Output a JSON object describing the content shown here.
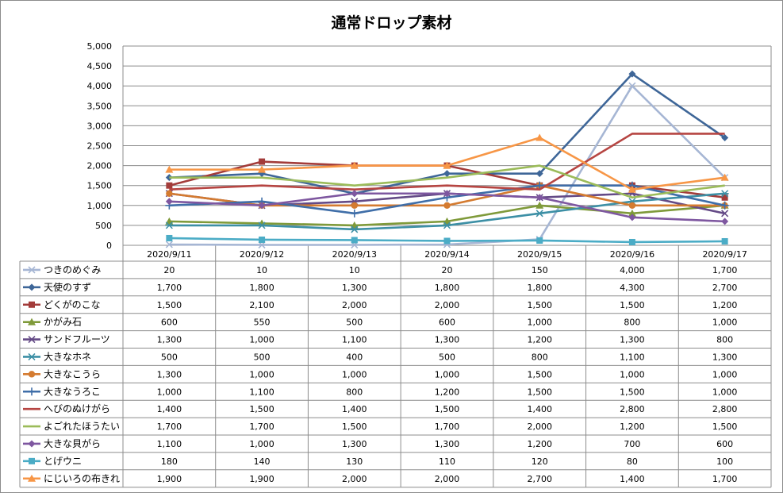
{
  "chart_data": {
    "type": "line",
    "title": "通常ドロップ素材",
    "xlabel": "",
    "ylabel": "",
    "ylim": [
      0,
      5000
    ],
    "y_ticks": [
      "0",
      "500",
      "1,000",
      "1,500",
      "2,000",
      "2,500",
      "3,000",
      "3,500",
      "4,000",
      "4,500",
      "5,000"
    ],
    "grid": true,
    "legend": "data-table",
    "categories": [
      "2020/9/11",
      "2020/9/12",
      "2020/9/13",
      "2020/9/14",
      "2020/9/15",
      "2020/9/16",
      "2020/9/17"
    ],
    "series": [
      {
        "name": "つきのめぐみ",
        "color": "#a6b6d4",
        "marker": "x",
        "values": [
          20,
          10,
          10,
          20,
          150,
          4000,
          1700
        ],
        "labels": [
          "20",
          "10",
          "10",
          "20",
          "150",
          "4,000",
          "1,700"
        ]
      },
      {
        "name": "天使のすず",
        "color": "#3e6698",
        "marker": "diamond",
        "values": [
          1700,
          1800,
          1300,
          1800,
          1800,
          4300,
          2700
        ],
        "labels": [
          "1,700",
          "1,800",
          "1,300",
          "1,800",
          "1,800",
          "4,300",
          "2,700"
        ]
      },
      {
        "name": "どくがのこな",
        "color": "#a33c3a",
        "marker": "square",
        "values": [
          1500,
          2100,
          2000,
          2000,
          1500,
          1500,
          1200
        ],
        "labels": [
          "1,500",
          "2,100",
          "2,000",
          "2,000",
          "1,500",
          "1,500",
          "1,200"
        ]
      },
      {
        "name": "かがみ石",
        "color": "#7f9a3a",
        "marker": "triangle",
        "values": [
          600,
          550,
          500,
          600,
          1000,
          800,
          1000
        ],
        "labels": [
          "600",
          "550",
          "500",
          "600",
          "1,000",
          "800",
          "1,000"
        ]
      },
      {
        "name": "サンドフルーツ",
        "color": "#644a86",
        "marker": "x",
        "values": [
          1300,
          1000,
          1100,
          1300,
          1200,
          1300,
          800
        ],
        "labels": [
          "1,300",
          "1,000",
          "1,100",
          "1,300",
          "1,200",
          "1,300",
          "800"
        ]
      },
      {
        "name": "大きなホネ",
        "color": "#3c8fa5",
        "marker": "star",
        "values": [
          500,
          500,
          400,
          500,
          800,
          1100,
          1300
        ],
        "labels": [
          "500",
          "500",
          "400",
          "500",
          "800",
          "1,100",
          "1,300"
        ]
      },
      {
        "name": "大きなこうら",
        "color": "#d47b30",
        "marker": "circle",
        "values": [
          1300,
          1000,
          1000,
          1000,
          1500,
          1000,
          1000
        ],
        "labels": [
          "1,300",
          "1,000",
          "1,000",
          "1,000",
          "1,500",
          "1,000",
          "1,000"
        ]
      },
      {
        "name": "大きなうろこ",
        "color": "#3f6ea8",
        "marker": "plus",
        "values": [
          1000,
          1100,
          800,
          1200,
          1500,
          1500,
          1000
        ],
        "labels": [
          "1,000",
          "1,100",
          "800",
          "1,200",
          "1,500",
          "1,500",
          "1,000"
        ]
      },
      {
        "name": "へびのぬけがら",
        "color": "#b64542",
        "marker": "none",
        "values": [
          1400,
          1500,
          1400,
          1500,
          1400,
          2800,
          2800
        ],
        "labels": [
          "1,400",
          "1,500",
          "1,400",
          "1,500",
          "1,400",
          "2,800",
          "2,800"
        ]
      },
      {
        "name": "よごれたほうたい",
        "color": "#9bbb59",
        "marker": "none",
        "values": [
          1700,
          1700,
          1500,
          1700,
          2000,
          1200,
          1500
        ],
        "labels": [
          "1,700",
          "1,700",
          "1,500",
          "1,700",
          "2,000",
          "1,200",
          "1,500"
        ]
      },
      {
        "name": "大きな貝がら",
        "color": "#7e57a0",
        "marker": "diamond",
        "values": [
          1100,
          1000,
          1300,
          1300,
          1200,
          700,
          600
        ],
        "labels": [
          "1,100",
          "1,000",
          "1,300",
          "1,300",
          "1,200",
          "700",
          "600"
        ]
      },
      {
        "name": "とげウニ",
        "color": "#4bacc6",
        "marker": "square",
        "values": [
          180,
          140,
          130,
          110,
          120,
          80,
          100
        ],
        "labels": [
          "180",
          "140",
          "130",
          "110",
          "120",
          "80",
          "100"
        ]
      },
      {
        "name": "にじいろの布きれ",
        "color": "#f79646",
        "marker": "triangle",
        "values": [
          1900,
          1900,
          2000,
          2000,
          2700,
          1400,
          1700
        ],
        "labels": [
          "1,900",
          "1,900",
          "2,000",
          "2,000",
          "2,700",
          "1,400",
          "1,700"
        ]
      }
    ]
  }
}
